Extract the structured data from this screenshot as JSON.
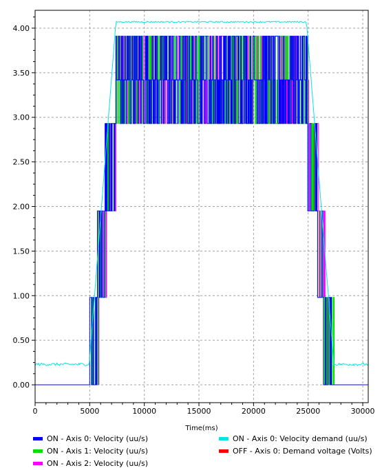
{
  "chart_data": {
    "type": "line",
    "title": "",
    "xlabel": "Time(ms)",
    "ylabel": "",
    "xlim": [
      0,
      30500
    ],
    "ylim": [
      -0.2,
      4.2
    ],
    "grid": true,
    "x_ticks": [
      "0",
      "5000",
      "10000",
      "15000",
      "20000",
      "25000",
      "30000"
    ],
    "y_ticks": [
      "0.00",
      "0.50",
      "1.00",
      "1.50",
      "2.00",
      "2.50",
      "3.00",
      "3.50",
      "4.00"
    ],
    "demand_profile": [
      {
        "x": 0,
        "y": 0.23
      },
      {
        "x": 4950,
        "y": 0.23
      },
      {
        "x": 7400,
        "y": 4.07
      },
      {
        "x": 24850,
        "y": 4.07
      },
      {
        "x": 27350,
        "y": 0.23
      },
      {
        "x": 30500,
        "y": 0.23
      }
    ],
    "velocity_levels": [
      0.0,
      0.98,
      1.95,
      2.93,
      3.42,
      3.91
    ],
    "series": [
      {
        "name": "Axis 0: Velocity (uu/s)",
        "status": "ON",
        "color": "#0000ff"
      },
      {
        "name": "Axis 1: Velocity (uu/s)",
        "status": "ON",
        "color": "#00e000"
      },
      {
        "name": "Axis 2: Velocity (uu/s)",
        "status": "ON",
        "color": "#ff00ff"
      },
      {
        "name": "Axis 0: Velocity demand (uu/s)",
        "status": "ON",
        "color": "#00e5e5"
      },
      {
        "name": "Axis 0: Demand voltage (Volts)",
        "status": "OFF",
        "color": "#ff0000"
      }
    ]
  },
  "legend": {
    "items": [
      {
        "status": "ON",
        "label": "Axis 0: Velocity (uu/s)",
        "color": "#0000ff"
      },
      {
        "status": "ON",
        "label": "Axis 1: Velocity (uu/s)",
        "color": "#00e000"
      },
      {
        "status": "ON",
        "label": "Axis 2: Velocity (uu/s)",
        "color": "#ff00ff"
      },
      {
        "status": "ON",
        "label": "Axis 0: Velocity demand (uu/s)",
        "color": "#00e5e5"
      },
      {
        "status": "OFF",
        "label": "Axis 0: Demand voltage (Volts)",
        "color": "#ff0000"
      }
    ]
  }
}
